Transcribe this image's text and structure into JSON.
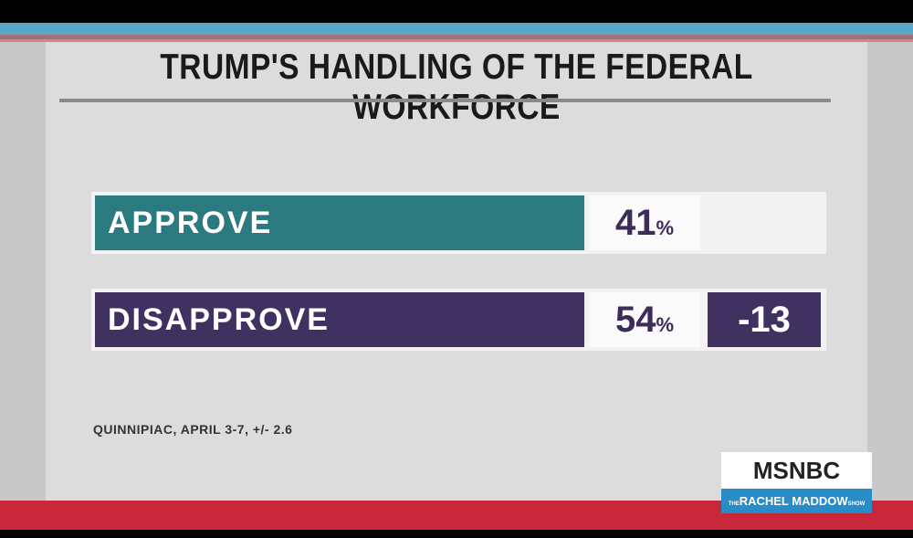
{
  "header": {
    "title": "TRUMP'S HANDLING OF THE FEDERAL WORKFORCE"
  },
  "rows": [
    {
      "label": "APPROVE",
      "value": "41",
      "unit": "%"
    },
    {
      "label": "DISAPPROVE",
      "value": "54",
      "unit": "%",
      "margin": "-13"
    }
  ],
  "source": "QUINNIPIAC, APRIL 3-7, +/- 2.6",
  "logo": {
    "network": "MSNBC",
    "show_prefix": "THE",
    "show": "RACHEL MADDOW",
    "show_suffix": "SHOW"
  }
}
